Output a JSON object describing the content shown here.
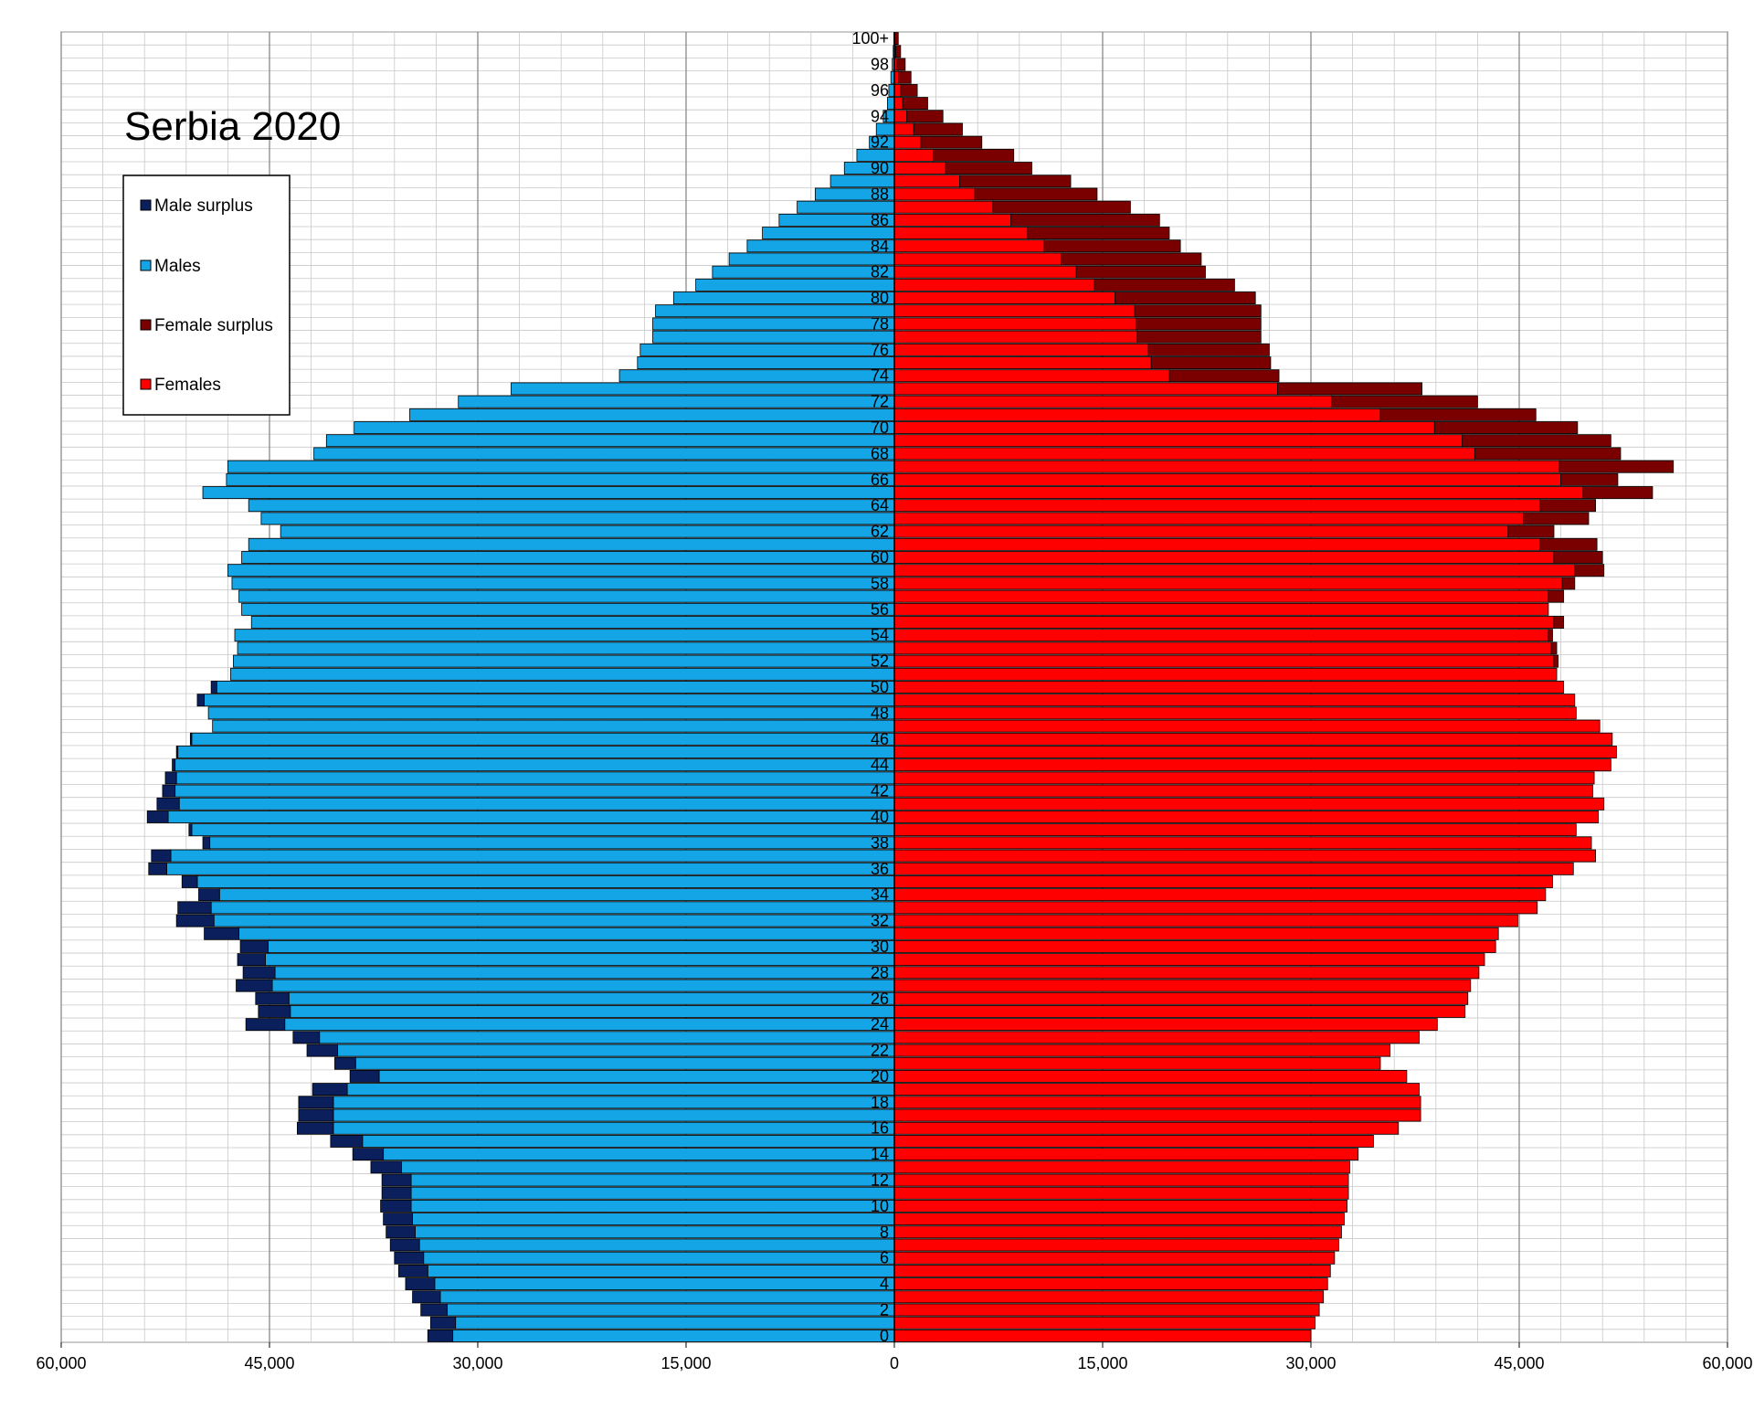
{
  "chart_data": {
    "type": "bar",
    "orientation": "horizontal-population-pyramid",
    "title": "Serbia 2020",
    "legend": {
      "placement": "top-left",
      "items": [
        {
          "label": "Male surplus",
          "color": "#0a1f5c"
        },
        {
          "label": "Males",
          "color": "#14a5e6"
        },
        {
          "label": "Female surplus",
          "color": "#7a0000"
        },
        {
          "label": "Females",
          "color": "#ff0000"
        }
      ]
    },
    "x_axis": {
      "range": [
        -60000,
        60000
      ],
      "tick_values": [
        -60000,
        -45000,
        -30000,
        -15000,
        0,
        15000,
        30000,
        45000,
        60000
      ],
      "tick_labels": [
        "60,000",
        "45,000",
        "30,000",
        "15,000",
        "0",
        "15,000",
        "30,000",
        "45,000",
        "60,000"
      ],
      "minor_grid_step": 3000
    },
    "y_axis": {
      "tick_labels": [
        "0",
        "2",
        "4",
        "6",
        "8",
        "10",
        "12",
        "14",
        "16",
        "18",
        "20",
        "22",
        "24",
        "26",
        "28",
        "30",
        "32",
        "34",
        "36",
        "38",
        "40",
        "42",
        "44",
        "46",
        "48",
        "50",
        "52",
        "54",
        "56",
        "58",
        "60",
        "62",
        "64",
        "66",
        "68",
        "70",
        "72",
        "74",
        "76",
        "78",
        "80",
        "82",
        "84",
        "86",
        "88",
        "90",
        "92",
        "94",
        "96",
        "98",
        "100+"
      ],
      "grid": true
    },
    "categories": [
      "0",
      "1",
      "2",
      "3",
      "4",
      "5",
      "6",
      "7",
      "8",
      "9",
      "10",
      "11",
      "12",
      "13",
      "14",
      "15",
      "16",
      "17",
      "18",
      "19",
      "20",
      "21",
      "22",
      "23",
      "24",
      "25",
      "26",
      "27",
      "28",
      "29",
      "30",
      "31",
      "32",
      "33",
      "34",
      "35",
      "36",
      "37",
      "38",
      "39",
      "40",
      "41",
      "42",
      "43",
      "44",
      "45",
      "46",
      "47",
      "48",
      "49",
      "50",
      "51",
      "52",
      "53",
      "54",
      "55",
      "56",
      "57",
      "58",
      "59",
      "60",
      "61",
      "62",
      "63",
      "64",
      "65",
      "66",
      "67",
      "68",
      "69",
      "70",
      "71",
      "72",
      "73",
      "74",
      "75",
      "76",
      "77",
      "78",
      "79",
      "80",
      "81",
      "82",
      "83",
      "84",
      "85",
      "86",
      "87",
      "88",
      "89",
      "90",
      "91",
      "92",
      "93",
      "94",
      "95",
      "96",
      "97",
      "98",
      "99",
      "100+"
    ],
    "series": [
      {
        "name": "Males",
        "values": [
          31800,
          31600,
          32200,
          32700,
          33100,
          33600,
          33900,
          34200,
          34500,
          34700,
          34800,
          34800,
          34800,
          35500,
          36800,
          38300,
          40400,
          40400,
          40400,
          39400,
          37100,
          38800,
          40100,
          41400,
          43900,
          43500,
          43600,
          44800,
          44600,
          45300,
          45100,
          47200,
          49000,
          49200,
          48600,
          50200,
          52400,
          52100,
          49300,
          50600,
          52300,
          51500,
          51800,
          51700,
          51800,
          51600,
          50600,
          49100,
          49400,
          49700,
          48800,
          47800,
          47600,
          47300,
          47500,
          46300,
          47000,
          47200,
          47700,
          48000,
          47000,
          46500,
          44200,
          45600,
          46500,
          49800,
          48100,
          48000,
          41800,
          40900,
          38900,
          34900,
          31400,
          27600,
          19800,
          18500,
          18300,
          17400,
          17400,
          17200,
          15900,
          14300,
          13100,
          11900,
          10600,
          9500,
          8300,
          7000,
          5700,
          4600,
          3600,
          2700,
          1800,
          1300,
          800,
          500,
          400,
          250,
          150,
          80,
          30
        ]
      },
      {
        "name": "Females",
        "values": [
          30000,
          30300,
          30600,
          30900,
          31200,
          31400,
          31700,
          32000,
          32200,
          32400,
          32600,
          32700,
          32700,
          32800,
          33400,
          34500,
          36300,
          37900,
          37900,
          37800,
          36900,
          35000,
          35700,
          37800,
          39100,
          41100,
          41300,
          41500,
          42100,
          42500,
          43300,
          43500,
          44900,
          46300,
          46900,
          47400,
          48900,
          50500,
          50200,
          49100,
          50700,
          51100,
          50300,
          50400,
          51600,
          52000,
          51700,
          50800,
          49100,
          49000,
          48200,
          47700,
          47500,
          47300,
          47100,
          47500,
          47100,
          47100,
          48100,
          49000,
          47500,
          46500,
          44200,
          45300,
          46500,
          49600,
          48000,
          47900,
          41800,
          40900,
          38900,
          35000,
          31500,
          27600,
          19800,
          18500,
          18300,
          17500,
          17400,
          17300,
          15900,
          14400,
          13100,
          12000,
          10800,
          9600,
          8400,
          7100,
          5800,
          4700,
          3700,
          2800,
          1900,
          1400,
          900,
          600,
          450,
          300,
          180,
          100,
          40
        ]
      },
      {
        "name": "Male surplus",
        "values": [
          1800,
          1800,
          1900,
          2000,
          2100,
          2100,
          2100,
          2100,
          2100,
          2100,
          2200,
          2100,
          2100,
          2200,
          2200,
          2300,
          2600,
          2500,
          2500,
          2500,
          2100,
          1500,
          2200,
          1900,
          2800,
          2300,
          2400,
          2600,
          2300,
          2000,
          2000,
          2500,
          2700,
          2400,
          1500,
          1100,
          1300,
          1400,
          500,
          200,
          1500,
          1600,
          900,
          800,
          200,
          100,
          100,
          0,
          0,
          500,
          400,
          0,
          0,
          0,
          0,
          0,
          0,
          0,
          0,
          0,
          0,
          0,
          0,
          0,
          0,
          0,
          0,
          0,
          0,
          0,
          0,
          0,
          0,
          0,
          0,
          0,
          0,
          0,
          0,
          0,
          0,
          0,
          0,
          0,
          0,
          0,
          0,
          0,
          0,
          0,
          0,
          0,
          0,
          0,
          0,
          0,
          0,
          0,
          0,
          0,
          0
        ]
      },
      {
        "name": "Female surplus",
        "values": [
          0,
          0,
          0,
          0,
          0,
          0,
          0,
          0,
          0,
          0,
          0,
          0,
          0,
          0,
          0,
          0,
          0,
          0,
          0,
          0,
          0,
          0,
          0,
          0,
          0,
          0,
          0,
          0,
          0,
          0,
          0,
          0,
          0,
          0,
          0,
          0,
          0,
          0,
          0,
          0,
          0,
          0,
          0,
          0,
          0,
          0,
          0,
          0,
          0,
          0,
          0,
          0,
          300,
          400,
          300,
          700,
          0,
          1100,
          900,
          2100,
          3500,
          4100,
          3300,
          4700,
          4000,
          5000,
          4100,
          8200,
          10500,
          10700,
          10300,
          11200,
          10500,
          10400,
          7900,
          8600,
          8700,
          8900,
          9000,
          9100,
          10100,
          10100,
          9300,
          10100,
          9800,
          10200,
          10700,
          9900,
          8800,
          8000,
          6200,
          5800,
          4400,
          3500,
          2600,
          1800,
          1200,
          900,
          600,
          350,
          240
        ]
      }
    ]
  }
}
